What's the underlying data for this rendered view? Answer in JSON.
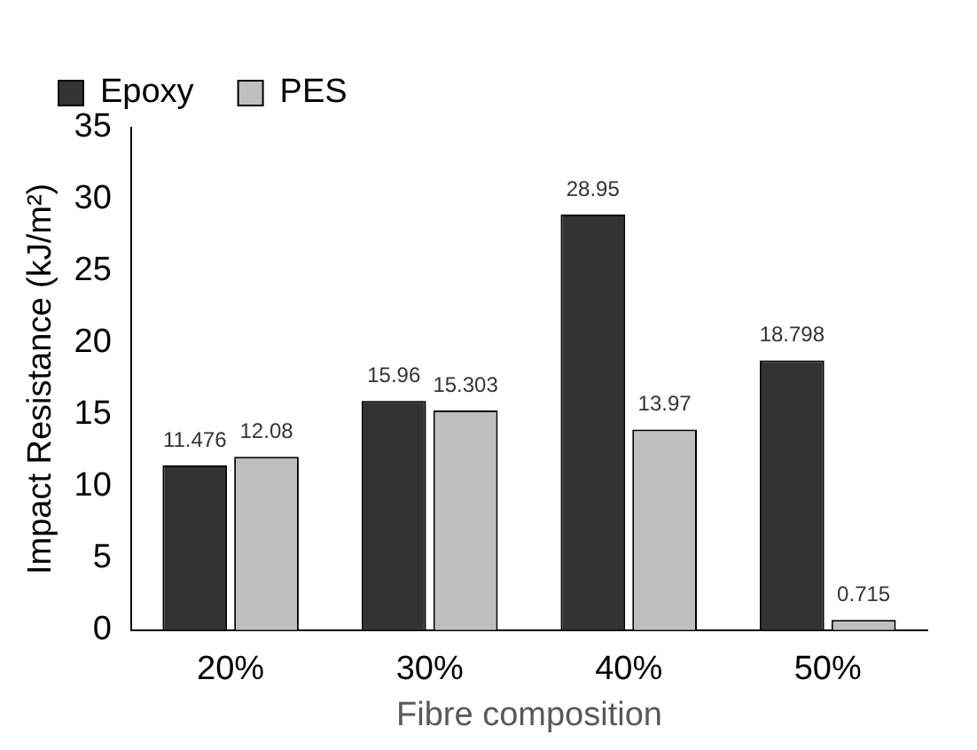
{
  "chart_data": {
    "type": "bar",
    "xlabel": "Fibre composition",
    "ylabel": "Impact Resistance (kJ/m²)",
    "categories": [
      "20%",
      "30%",
      "40%",
      "50%"
    ],
    "series": [
      {
        "name": "Epoxy",
        "color": "#333333",
        "values": [
          11.476,
          15.96,
          28.95,
          18.798
        ]
      },
      {
        "name": "PES",
        "color": "#bfbfbf",
        "values": [
          12.08,
          15.303,
          13.97,
          0.715
        ]
      }
    ],
    "ylim": [
      0,
      35
    ],
    "yticks": [
      0,
      5,
      10,
      15,
      20,
      25,
      30,
      35
    ],
    "grid": false,
    "legend": "top left",
    "data_labels": true
  }
}
